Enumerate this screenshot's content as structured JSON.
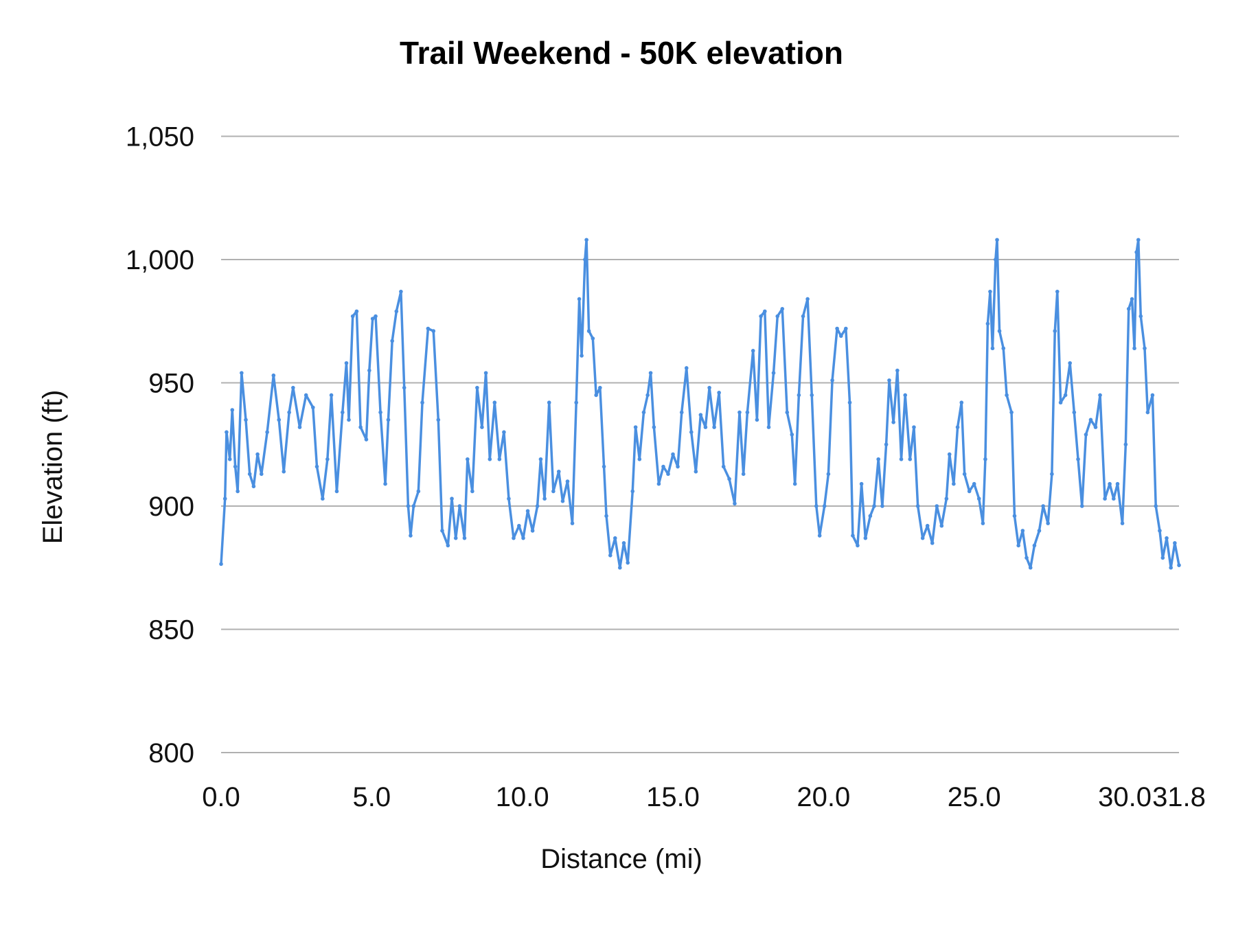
{
  "chart_data": {
    "type": "line",
    "title": "Trail Weekend - 50K elevation",
    "xlabel": "Distance (mi)",
    "ylabel": "Elevation (ft)",
    "xlim": [
      0,
      31.8
    ],
    "ylim": [
      800,
      1050
    ],
    "x_ticks": [
      "0.0",
      "5.0",
      "10.0",
      "15.0",
      "20.0",
      "25.0",
      "30.0",
      "31.8"
    ],
    "x_tick_values": [
      0,
      5,
      10,
      15,
      20,
      25,
      30,
      31.8
    ],
    "y_ticks": [
      "800",
      "850",
      "900",
      "950",
      "1,000",
      "1,050"
    ],
    "y_tick_values": [
      800,
      850,
      900,
      950,
      1000,
      1050
    ],
    "grid": "horizontal",
    "legend": "none",
    "series_color": "#4a8fe0",
    "grid_color": "#b0b0b0",
    "series": [
      {
        "points": [
          [
            0,
            876.5
          ],
          [
            0.13,
            903
          ],
          [
            0.18,
            930
          ],
          [
            0.29,
            919
          ],
          [
            0.37,
            939
          ],
          [
            0.47,
            916
          ],
          [
            0.55,
            906
          ],
          [
            0.68,
            954
          ],
          [
            0.82,
            935
          ],
          [
            0.95,
            913
          ],
          [
            1.08,
            908
          ],
          [
            1.21,
            921
          ],
          [
            1.34,
            913
          ],
          [
            1.53,
            930
          ],
          [
            1.74,
            953
          ],
          [
            1.92,
            935
          ],
          [
            2.08,
            914
          ],
          [
            2.26,
            938
          ],
          [
            2.39,
            948
          ],
          [
            2.61,
            932
          ],
          [
            2.82,
            945
          ],
          [
            3.05,
            940
          ],
          [
            3.18,
            916
          ],
          [
            3.37,
            903
          ],
          [
            3.53,
            919
          ],
          [
            3.66,
            945
          ],
          [
            3.84,
            906
          ],
          [
            4.03,
            938
          ],
          [
            4.16,
            958
          ],
          [
            4.24,
            935
          ],
          [
            4.37,
            977
          ],
          [
            4.5,
            979
          ],
          [
            4.63,
            932
          ],
          [
            4.82,
            927
          ],
          [
            4.92,
            955
          ],
          [
            5.03,
            976
          ],
          [
            5.13,
            977
          ],
          [
            5.29,
            938
          ],
          [
            5.45,
            909
          ],
          [
            5.55,
            935
          ],
          [
            5.68,
            967
          ],
          [
            5.82,
            979
          ],
          [
            5.97,
            987
          ],
          [
            6.08,
            948
          ],
          [
            6.21,
            900
          ],
          [
            6.29,
            888
          ],
          [
            6.39,
            900
          ],
          [
            6.55,
            906
          ],
          [
            6.68,
            942
          ],
          [
            6.87,
            972
          ],
          [
            7.05,
            971
          ],
          [
            7.21,
            935
          ],
          [
            7.34,
            890
          ],
          [
            7.53,
            884
          ],
          [
            7.66,
            903
          ],
          [
            7.79,
            887
          ],
          [
            7.92,
            900
          ],
          [
            8.08,
            887
          ],
          [
            8.18,
            919
          ],
          [
            8.34,
            906
          ],
          [
            8.5,
            948
          ],
          [
            8.66,
            932
          ],
          [
            8.79,
            954
          ],
          [
            8.92,
            919
          ],
          [
            9.08,
            942
          ],
          [
            9.24,
            919
          ],
          [
            9.39,
            930
          ],
          [
            9.55,
            903
          ],
          [
            9.71,
            887
          ],
          [
            9.89,
            892
          ],
          [
            10.03,
            887
          ],
          [
            10.18,
            898
          ],
          [
            10.34,
            890
          ],
          [
            10.5,
            900
          ],
          [
            10.61,
            919
          ],
          [
            10.74,
            903
          ],
          [
            10.89,
            942
          ],
          [
            11.03,
            906
          ],
          [
            11.21,
            914
          ],
          [
            11.34,
            902
          ],
          [
            11.5,
            910
          ],
          [
            11.66,
            893
          ],
          [
            11.79,
            942
          ],
          [
            11.89,
            984
          ],
          [
            11.97,
            961
          ],
          [
            12.08,
            1000
          ],
          [
            12.13,
            1008
          ],
          [
            12.21,
            971
          ],
          [
            12.34,
            968
          ],
          [
            12.45,
            945
          ],
          [
            12.58,
            948
          ],
          [
            12.71,
            916
          ],
          [
            12.79,
            896
          ],
          [
            12.92,
            880
          ],
          [
            13.08,
            887
          ],
          [
            13.24,
            875
          ],
          [
            13.37,
            885
          ],
          [
            13.5,
            877
          ],
          [
            13.66,
            906
          ],
          [
            13.76,
            932
          ],
          [
            13.89,
            919
          ],
          [
            14.03,
            938
          ],
          [
            14.16,
            945
          ],
          [
            14.26,
            954
          ],
          [
            14.37,
            932
          ],
          [
            14.53,
            909
          ],
          [
            14.68,
            916
          ],
          [
            14.84,
            913
          ],
          [
            15.0,
            921
          ],
          [
            15.16,
            916
          ],
          [
            15.29,
            938
          ],
          [
            15.45,
            956
          ],
          [
            15.61,
            930
          ],
          [
            15.76,
            914
          ],
          [
            15.92,
            937
          ],
          [
            16.08,
            932
          ],
          [
            16.21,
            948
          ],
          [
            16.37,
            932
          ],
          [
            16.53,
            946
          ],
          [
            16.68,
            916
          ],
          [
            16.87,
            911
          ],
          [
            17.05,
            901
          ],
          [
            17.21,
            938
          ],
          [
            17.34,
            913
          ],
          [
            17.47,
            938
          ],
          [
            17.66,
            963
          ],
          [
            17.79,
            935
          ],
          [
            17.92,
            977
          ],
          [
            18.05,
            979
          ],
          [
            18.18,
            932
          ],
          [
            18.34,
            954
          ],
          [
            18.47,
            977
          ],
          [
            18.63,
            980
          ],
          [
            18.79,
            938
          ],
          [
            18.95,
            929
          ],
          [
            19.05,
            909
          ],
          [
            19.18,
            945
          ],
          [
            19.32,
            977
          ],
          [
            19.47,
            984
          ],
          [
            19.61,
            945
          ],
          [
            19.76,
            900
          ],
          [
            19.87,
            888
          ],
          [
            20.03,
            900
          ],
          [
            20.16,
            913
          ],
          [
            20.29,
            951
          ],
          [
            20.45,
            972
          ],
          [
            20.58,
            969
          ],
          [
            20.74,
            972
          ],
          [
            20.87,
            942
          ],
          [
            20.97,
            888
          ],
          [
            21.13,
            884
          ],
          [
            21.26,
            909
          ],
          [
            21.39,
            887
          ],
          [
            21.55,
            896
          ],
          [
            21.68,
            900
          ],
          [
            21.82,
            919
          ],
          [
            21.95,
            900
          ],
          [
            22.08,
            925
          ],
          [
            22.18,
            951
          ],
          [
            22.32,
            934
          ],
          [
            22.45,
            955
          ],
          [
            22.58,
            919
          ],
          [
            22.71,
            945
          ],
          [
            22.87,
            919
          ],
          [
            23.0,
            932
          ],
          [
            23.13,
            900
          ],
          [
            23.29,
            887
          ],
          [
            23.45,
            892
          ],
          [
            23.61,
            885
          ],
          [
            23.76,
            900
          ],
          [
            23.92,
            892
          ],
          [
            24.08,
            903
          ],
          [
            24.18,
            921
          ],
          [
            24.32,
            909
          ],
          [
            24.45,
            932
          ],
          [
            24.58,
            942
          ],
          [
            24.68,
            913
          ],
          [
            24.84,
            906
          ],
          [
            25.0,
            909
          ],
          [
            25.16,
            903
          ],
          [
            25.29,
            893
          ],
          [
            25.37,
            919
          ],
          [
            25.45,
            974
          ],
          [
            25.53,
            987
          ],
          [
            25.61,
            964
          ],
          [
            25.71,
            1000
          ],
          [
            25.76,
            1008
          ],
          [
            25.84,
            971
          ],
          [
            25.97,
            964
          ],
          [
            26.08,
            945
          ],
          [
            26.24,
            938
          ],
          [
            26.34,
            896
          ],
          [
            26.47,
            884
          ],
          [
            26.61,
            890
          ],
          [
            26.74,
            879
          ],
          [
            26.87,
            875
          ],
          [
            27.0,
            884
          ],
          [
            27.16,
            890
          ],
          [
            27.29,
            900
          ],
          [
            27.45,
            893
          ],
          [
            27.58,
            913
          ],
          [
            27.68,
            971
          ],
          [
            27.76,
            987
          ],
          [
            27.87,
            942
          ],
          [
            28.03,
            945
          ],
          [
            28.18,
            958
          ],
          [
            28.32,
            938
          ],
          [
            28.45,
            919
          ],
          [
            28.58,
            900
          ],
          [
            28.71,
            929
          ],
          [
            28.87,
            935
          ],
          [
            29.03,
            932
          ],
          [
            29.18,
            945
          ],
          [
            29.34,
            903
          ],
          [
            29.5,
            909
          ],
          [
            29.63,
            903
          ],
          [
            29.76,
            909
          ],
          [
            29.92,
            893
          ],
          [
            30.03,
            925
          ],
          [
            30.13,
            980
          ],
          [
            30.24,
            984
          ],
          [
            30.32,
            964
          ],
          [
            30.39,
            1003
          ],
          [
            30.45,
            1008
          ],
          [
            30.53,
            977
          ],
          [
            30.66,
            964
          ],
          [
            30.76,
            938
          ],
          [
            30.92,
            945
          ],
          [
            31.03,
            900
          ],
          [
            31.16,
            890
          ],
          [
            31.26,
            879
          ],
          [
            31.39,
            887
          ],
          [
            31.53,
            875
          ],
          [
            31.66,
            885
          ],
          [
            31.8,
            876
          ]
        ]
      }
    ]
  }
}
